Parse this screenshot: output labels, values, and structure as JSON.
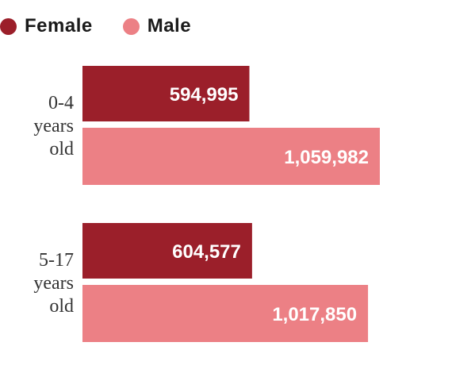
{
  "chart_data": {
    "type": "bar",
    "orientation": "horizontal",
    "categories": [
      [
        "0-4",
        "years",
        "old"
      ],
      [
        "5-17",
        "years",
        "old"
      ]
    ],
    "series": [
      {
        "name": "Female",
        "color": "#9b1f2a",
        "values": [
          594995,
          604577
        ],
        "labels": [
          "594,995",
          "604,577"
        ]
      },
      {
        "name": "Male",
        "color": "#ec8085",
        "values": [
          1059982,
          1017850
        ],
        "labels": [
          "1,059,982",
          "1,017,850"
        ]
      }
    ],
    "xlim": [
      0,
      1059982
    ],
    "legend_position": "top-left",
    "grid": false
  }
}
